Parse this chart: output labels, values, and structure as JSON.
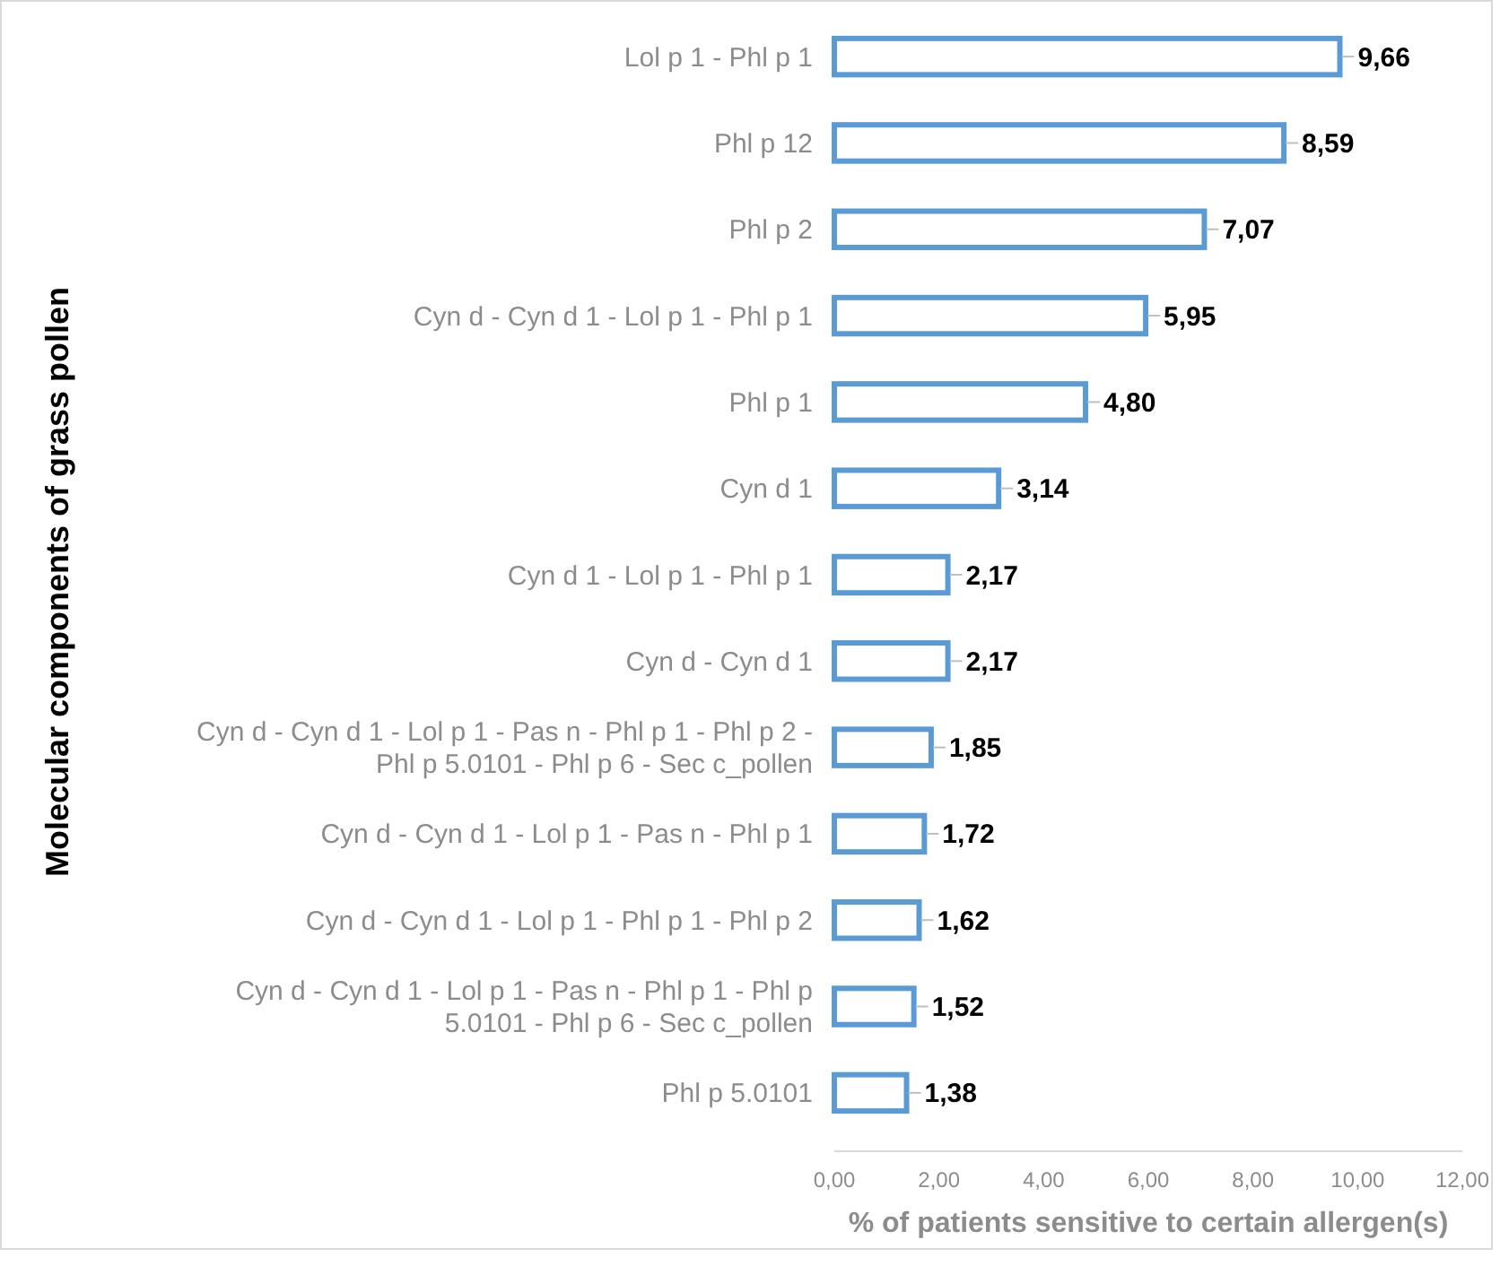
{
  "chart_data": {
    "type": "bar",
    "orientation": "horizontal",
    "xlabel": "% of patients sensitive to certain allergen(s)",
    "ylabel": "Molecular components of grass pollen",
    "categories": [
      "Lol p 1 - Phl p 1",
      "Phl p 12",
      "Phl p 2",
      "Cyn d - Cyn d 1 - Lol p 1 - Phl p 1",
      "Phl p 1",
      "Cyn d 1",
      "Cyn d 1 - Lol p 1 - Phl p 1",
      "Cyn d - Cyn d 1",
      "Cyn d - Cyn d 1 - Lol p 1 - Pas n - Phl p 1 - Phl p 2 - Phl p 5.0101 - Phl p 6 - Sec c_pollen",
      "Cyn d - Cyn d 1 - Lol p 1 - Pas n - Phl p 1",
      "Cyn d - Cyn d 1 - Lol p 1 - Phl p 1 - Phl p 2",
      "Cyn d - Cyn d 1 - Lol p 1 - Pas n - Phl p 1 - Phl p 5.0101 - Phl p 6 - Sec c_pollen",
      "Phl p 5.0101"
    ],
    "values": [
      9.66,
      8.59,
      7.07,
      5.95,
      4.8,
      3.14,
      2.17,
      2.17,
      1.85,
      1.72,
      1.62,
      1.52,
      1.38
    ],
    "value_labels": [
      "9,66",
      "8,59",
      "7,07",
      "5,95",
      "4,80",
      "3,14",
      "2,17",
      "2,17",
      "1,85",
      "1,72",
      "1,62",
      "1,52",
      "1,38"
    ],
    "color": "#5b9bd5",
    "xlim": [
      0,
      12
    ],
    "xticks": [
      {
        "value": 0,
        "label": "0,00"
      },
      {
        "value": 2,
        "label": "2,00"
      },
      {
        "value": 4,
        "label": "4,00"
      },
      {
        "value": 6,
        "label": "6,00"
      },
      {
        "value": 8,
        "label": "8,00"
      },
      {
        "value": 10,
        "label": "10,00"
      },
      {
        "value": 12,
        "label": "12,00"
      }
    ],
    "grid": false
  }
}
